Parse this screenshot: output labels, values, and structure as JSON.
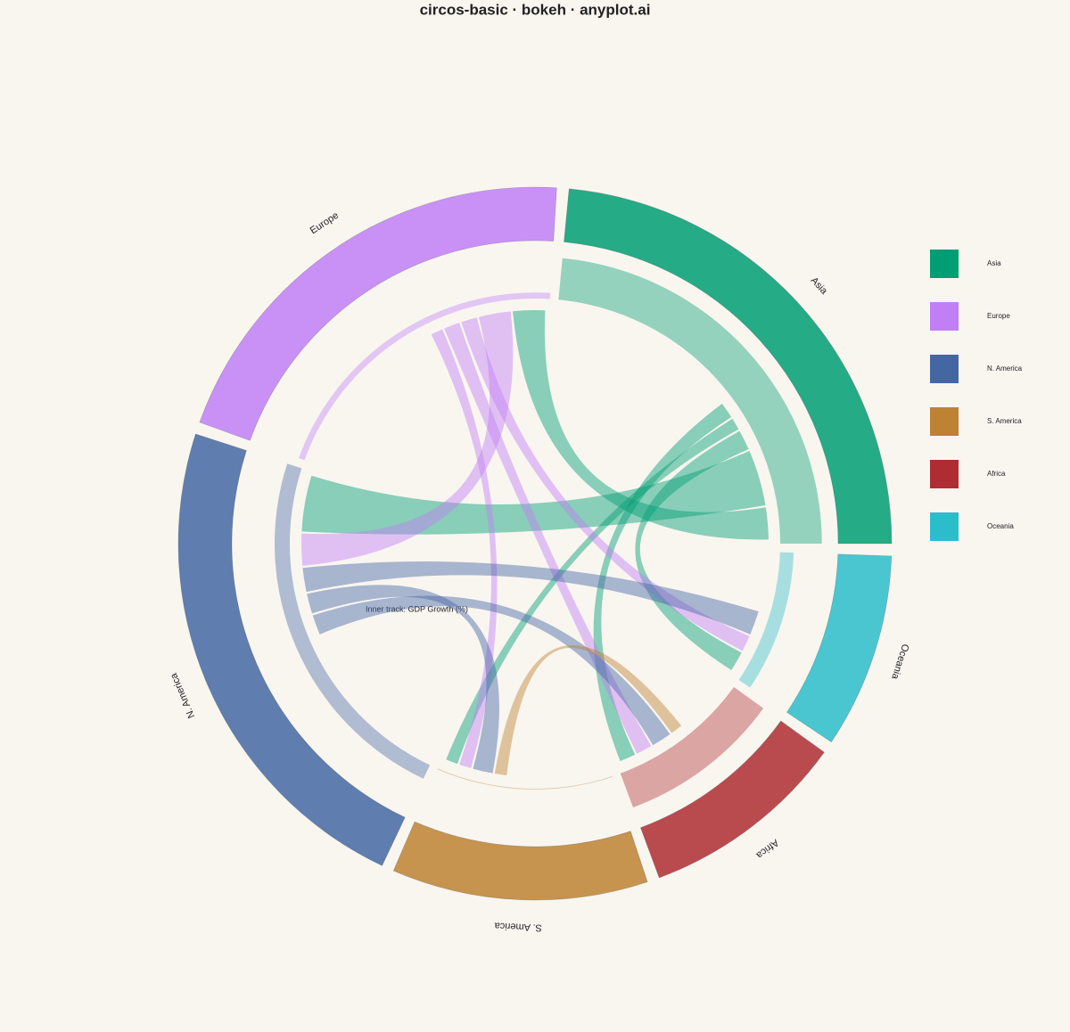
{
  "chart_data": {
    "type": "circos",
    "title": "circos-basic · bokeh · anyplot.ai",
    "track_label": "Inner track: GDP Growth (%)",
    "series": [
      {
        "name": "Asia",
        "color": "#009E73",
        "values": [
          85
        ],
        "track": 5.5
      },
      {
        "name": "Europe",
        "color": "#C17FF7",
        "values": [
          74
        ],
        "track": 0.8
      },
      {
        "name": "N. America",
        "color": "#4467A3",
        "values": [
          83
        ],
        "track": 2.0
      },
      {
        "name": "S. America",
        "color": "#BD8233",
        "values": [
          42
        ],
        "track": 0.1
      },
      {
        "name": "Africa",
        "color": "#AE2D32",
        "values": [
          34
        ],
        "track": 4.8
      },
      {
        "name": "Oceania",
        "color": "#2CBDCB",
        "values": [
          32
        ],
        "track": 1.8
      }
    ],
    "track_lim": [
      0,
      6
    ],
    "links": [
      {
        "source": "Asia",
        "target": "Europe",
        "value": 8
      },
      {
        "source": "Asia",
        "target": "N. America",
        "value": 14
      },
      {
        "source": "Asia",
        "target": "Oceania",
        "value": 5
      },
      {
        "source": "Asia",
        "target": "S. America",
        "value": 3
      },
      {
        "source": "Asia",
        "target": "Africa",
        "value": 4
      },
      {
        "source": "Europe",
        "target": "N. America",
        "value": 8
      },
      {
        "source": "Europe",
        "target": "Oceania",
        "value": 4
      },
      {
        "source": "Europe",
        "target": "Africa",
        "value": 4
      },
      {
        "source": "Europe",
        "target": "S. America",
        "value": 3
      },
      {
        "source": "N. America",
        "target": "Oceania",
        "value": 6
      },
      {
        "source": "N. America",
        "target": "S. America",
        "value": 5
      },
      {
        "source": "N. America",
        "target": "Africa",
        "value": 5
      },
      {
        "source": "S. America",
        "target": "Africa",
        "value": 3
      }
    ]
  }
}
